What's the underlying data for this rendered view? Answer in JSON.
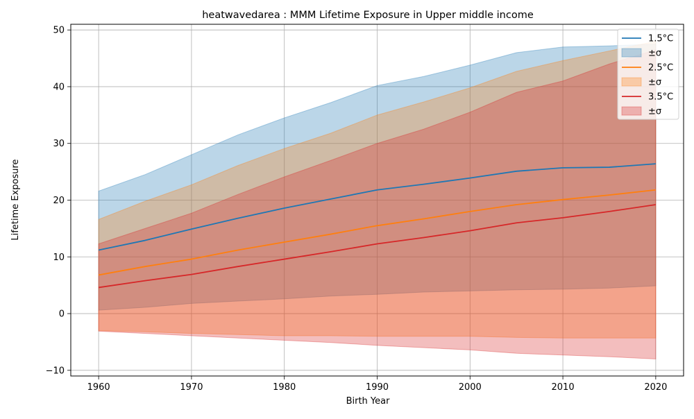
{
  "chart_data": {
    "type": "area",
    "title": "heatwavedarea : MMM Lifetime Exposure in Upper middle income",
    "xlabel": "Birth Year",
    "ylabel": "Lifetime Exposure",
    "xlim": [
      1957,
      2023
    ],
    "ylim": [
      -11,
      51
    ],
    "xticks": [
      1960,
      1970,
      1980,
      1990,
      2000,
      2010,
      2020
    ],
    "yticks": [
      -10,
      0,
      10,
      20,
      30,
      40,
      50
    ],
    "ytick_labels": [
      "−10",
      "0",
      "10",
      "20",
      "30",
      "40",
      "50"
    ],
    "grid": true,
    "legend_position": "top-right",
    "x": [
      1960,
      1965,
      1970,
      1975,
      1980,
      1985,
      1990,
      1995,
      2000,
      2005,
      2010,
      2015,
      2020
    ],
    "series": [
      {
        "name": "1.5°C",
        "band_name": "±σ",
        "color": "#1f77b4",
        "values": [
          11.2,
          12.9,
          14.9,
          16.8,
          18.6,
          20.2,
          21.8,
          22.8,
          23.9,
          25.1,
          25.7,
          25.8,
          26.4
        ],
        "upper": [
          21.6,
          24.5,
          28.0,
          31.5,
          34.5,
          37.2,
          40.2,
          41.8,
          43.8,
          46.0,
          47.0,
          47.2,
          47.5
        ],
        "lower": [
          0.6,
          1.1,
          1.8,
          2.2,
          2.6,
          3.1,
          3.4,
          3.8,
          4.0,
          4.2,
          4.3,
          4.5,
          4.9
        ]
      },
      {
        "name": "2.5°C",
        "band_name": "±σ",
        "color": "#ff7f0e",
        "values": [
          6.8,
          8.3,
          9.6,
          11.2,
          12.6,
          14.0,
          15.5,
          16.7,
          18.0,
          19.2,
          20.1,
          20.9,
          21.8
        ],
        "upper": [
          16.6,
          19.8,
          22.7,
          26.1,
          29.1,
          31.8,
          35.0,
          37.3,
          39.8,
          42.7,
          44.6,
          46.3,
          48.0
        ],
        "lower": [
          -3.0,
          -3.2,
          -3.5,
          -3.7,
          -3.9,
          -3.9,
          -4.0,
          -4.0,
          -4.0,
          -4.2,
          -4.3,
          -4.3,
          -4.3
        ]
      },
      {
        "name": "3.5°C",
        "band_name": "±σ",
        "color": "#d62728",
        "values": [
          4.6,
          5.8,
          6.9,
          8.3,
          9.6,
          10.9,
          12.3,
          13.4,
          14.6,
          16.0,
          16.9,
          18.0,
          19.2
        ],
        "upper": [
          12.3,
          15.0,
          17.7,
          21.0,
          24.1,
          27.0,
          30.0,
          32.5,
          35.5,
          39.0,
          41.0,
          44.0,
          46.5
        ],
        "lower": [
          -3.1,
          -3.5,
          -3.9,
          -4.3,
          -4.7,
          -5.1,
          -5.6,
          -6.0,
          -6.4,
          -7.0,
          -7.3,
          -7.6,
          -8.0
        ]
      }
    ]
  }
}
